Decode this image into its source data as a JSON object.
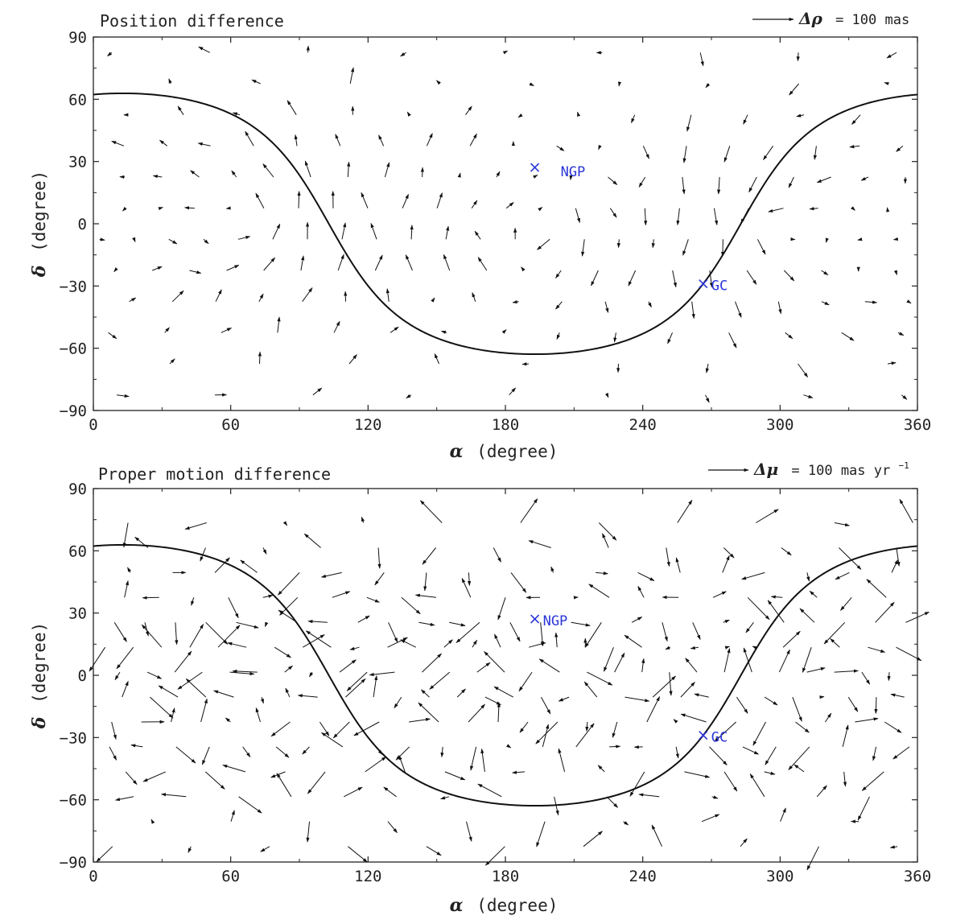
{
  "chart_data": [
    {
      "type": "vector-field",
      "title": "Position difference",
      "xlabel_symbol": "α",
      "xlabel_unit": "(degree)",
      "ylabel_symbol": "δ",
      "ylabel_unit": "(degree)",
      "xlim": [
        0,
        360
      ],
      "ylim": [
        -90,
        90
      ],
      "xticks": [
        0,
        60,
        120,
        180,
        240,
        300,
        360
      ],
      "yticks": [
        -90,
        -60,
        -30,
        0,
        30,
        60,
        90
      ],
      "scale": {
        "symbol": "Δρ",
        "text": "= 100 mas",
        "value": 100
      },
      "curve": {
        "name": "galactic-plane",
        "pole_ra": 192.86,
        "pole_dec": 27.13
      },
      "markers": [
        {
          "label": "NGP",
          "ra": 192.86,
          "dec": 27.13
        },
        {
          "label": "GC",
          "ra": 266.4,
          "dec": -28.94
        }
      ],
      "field_pattern": {
        "grid_step_deg": 15,
        "rotation_strength": 28,
        "rotation_centers_ra": [
          70,
          192,
          300
        ],
        "noise": 12,
        "seed": 7
      }
    },
    {
      "type": "vector-field",
      "title": "Proper motion difference",
      "xlabel_symbol": "α",
      "xlabel_unit": "(degree)",
      "ylabel_symbol": "δ",
      "ylabel_unit": "(degree)",
      "xlim": [
        0,
        360
      ],
      "ylim": [
        -90,
        90
      ],
      "xticks": [
        0,
        60,
        120,
        180,
        240,
        300,
        360
      ],
      "yticks": [
        -90,
        -60,
        -30,
        0,
        30,
        60,
        90
      ],
      "scale": {
        "symbol": "Δμ",
        "text": "= 100 mas yr",
        "sup": "−1",
        "value": 100
      },
      "curve": {
        "name": "galactic-plane",
        "pole_ra": 192.86,
        "pole_dec": 27.13
      },
      "markers": [
        {
          "label": "NGP",
          "ra": 192.86,
          "dec": 27.13
        },
        {
          "label": "GC",
          "ra": 266.4,
          "dec": -28.94
        }
      ],
      "field_pattern": {
        "grid_step_deg": 12,
        "rotation_strength": 0,
        "noise": 45,
        "seed": 21
      }
    }
  ],
  "colors": {
    "axes": "#222222",
    "arrows": "#111111",
    "markers": "#2a36d8"
  }
}
